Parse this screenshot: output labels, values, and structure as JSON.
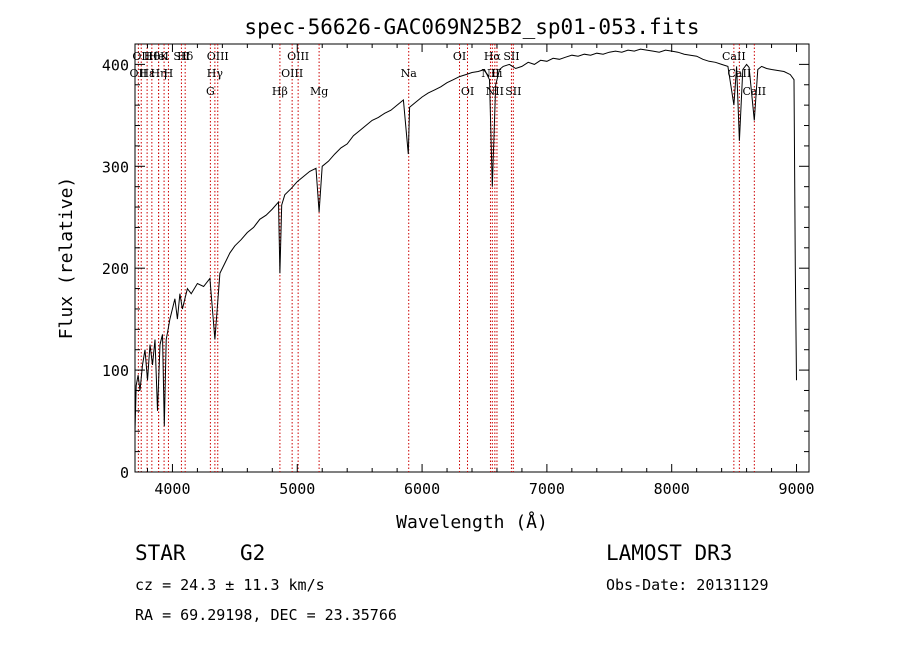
{
  "chart_data": {
    "type": "line",
    "title": "spec-56626-GAC069N25B2_sp01-053.fits",
    "xlabel": "Wavelength (Å)",
    "ylabel": "Flux (relative)",
    "xlim": [
      3700,
      9100
    ],
    "ylim": [
      0,
      420
    ],
    "xticks": [
      4000,
      5000,
      6000,
      7000,
      8000,
      9000
    ],
    "yticks": [
      0,
      100,
      200,
      300,
      400
    ],
    "grid": false,
    "line_color": "#000000",
    "marker_color": "#cc0000",
    "series": [
      {
        "x": [
          3700,
          3710,
          3725,
          3740,
          3760,
          3780,
          3800,
          3820,
          3840,
          3860,
          3880,
          3900,
          3920,
          3935,
          3950,
          3965,
          3980,
          4000,
          4020,
          4040,
          4060,
          4080,
          4100,
          4120,
          4150,
          4200,
          4250,
          4300,
          4340,
          4380,
          4420,
          4460,
          4500,
          4550,
          4600,
          4650,
          4700,
          4750,
          4800,
          4850,
          4861,
          4875,
          4900,
          4950,
          5000,
          5050,
          5100,
          5150,
          5175,
          5200,
          5250,
          5300,
          5350,
          5400,
          5450,
          5500,
          5550,
          5600,
          5650,
          5700,
          5750,
          5800,
          5850,
          5890,
          5900,
          5950,
          6000,
          6050,
          6100,
          6150,
          6200,
          6250,
          6300,
          6350,
          6400,
          6450,
          6500,
          6540,
          6563,
          6590,
          6620,
          6650,
          6700,
          6750,
          6800,
          6850,
          6900,
          6950,
          7000,
          7050,
          7100,
          7150,
          7200,
          7250,
          7300,
          7350,
          7400,
          7450,
          7500,
          7550,
          7600,
          7650,
          7700,
          7750,
          7800,
          7850,
          7900,
          7950,
          8000,
          8050,
          8100,
          8150,
          8200,
          8250,
          8300,
          8350,
          8400,
          8450,
          8498,
          8520,
          8542,
          8570,
          8600,
          8620,
          8662,
          8690,
          8720,
          8760,
          8800,
          8850,
          8900,
          8950,
          8980,
          8990,
          9000
        ],
        "y": [
          40,
          85,
          95,
          80,
          105,
          120,
          90,
          125,
          105,
          130,
          60,
          125,
          135,
          45,
          130,
          140,
          150,
          160,
          170,
          150,
          175,
          160,
          170,
          180,
          175,
          185,
          182,
          190,
          130,
          195,
          205,
          215,
          222,
          228,
          235,
          240,
          248,
          252,
          258,
          265,
          195,
          262,
          272,
          278,
          285,
          290,
          295,
          298,
          255,
          300,
          305,
          312,
          318,
          322,
          330,
          335,
          340,
          345,
          348,
          352,
          355,
          360,
          365,
          312,
          358,
          363,
          368,
          372,
          375,
          378,
          382,
          385,
          388,
          390,
          392,
          393,
          395,
          385,
          280,
          380,
          395,
          398,
          400,
          396,
          398,
          402,
          400,
          404,
          403,
          406,
          405,
          407,
          409,
          408,
          410,
          409,
          411,
          410,
          412,
          413,
          412,
          414,
          413,
          415,
          414,
          413,
          412,
          414,
          413,
          412,
          410,
          409,
          408,
          405,
          403,
          402,
          400,
          398,
          360,
          398,
          325,
          395,
          400,
          397,
          345,
          395,
          398,
          396,
          395,
          394,
          393,
          390,
          385,
          200,
          90
        ]
      }
    ],
    "line_markers": [
      {
        "wl": 3727,
        "row": 2,
        "label": "OII"
      },
      {
        "wl": 3750,
        "row": 1,
        "label": "OII"
      },
      {
        "wl": 3797,
        "row": 2,
        "label": "Hε"
      },
      {
        "wl": 3835,
        "row": 1,
        "label": "Hθ"
      },
      {
        "wl": 3889,
        "row": 2,
        "label": "Hη"
      },
      {
        "wl": 3889,
        "row": 1,
        "label": "HeI"
      },
      {
        "wl": 3933,
        "row": 1,
        "label": "K"
      },
      {
        "wl": 3968,
        "row": 2,
        "label": "H"
      },
      {
        "wl": 4072,
        "row": 1,
        "label": "SII"
      },
      {
        "wl": 4102,
        "row": 1,
        "label": "Hδ"
      },
      {
        "wl": 4304,
        "row": 3,
        "label": "G"
      },
      {
        "wl": 4340,
        "row": 2,
        "label": "Hγ"
      },
      {
        "wl": 4363,
        "row": 1,
        "label": "OIII"
      },
      {
        "wl": 4861,
        "row": 3,
        "label": "Hβ"
      },
      {
        "wl": 4959,
        "row": 2,
        "label": "OIII"
      },
      {
        "wl": 5007,
        "row": 1,
        "label": "OIII"
      },
      {
        "wl": 5175,
        "row": 3,
        "label": "Mg"
      },
      {
        "wl": 5893,
        "row": 2,
        "label": "Na"
      },
      {
        "wl": 6300,
        "row": 1,
        "label": "OI"
      },
      {
        "wl": 6364,
        "row": 3,
        "label": "OI"
      },
      {
        "wl": 6548,
        "row": 2,
        "label": "NII"
      },
      {
        "wl": 6563,
        "row": 1,
        "label": "Hα"
      },
      {
        "wl": 6583,
        "row": 3,
        "label": "NII"
      },
      {
        "wl": 6600,
        "row": 2,
        "label": "Li"
      },
      {
        "wl": 6716,
        "row": 1,
        "label": "SII"
      },
      {
        "wl": 6731,
        "row": 3,
        "label": "SII"
      },
      {
        "wl": 8498,
        "row": 1,
        "label": "CaII"
      },
      {
        "wl": 8542,
        "row": 2,
        "label": "CaII"
      },
      {
        "wl": 8662,
        "row": 3,
        "label": "CaII"
      }
    ]
  },
  "info": {
    "class": "STAR",
    "subclass": "G2",
    "survey": "LAMOST DR3",
    "cz": "cz = 24.3 ± 11.3 km/s",
    "obs_date": "Obs-Date: 20131129",
    "radec": "RA =  69.29198, DEC =  23.35766"
  }
}
